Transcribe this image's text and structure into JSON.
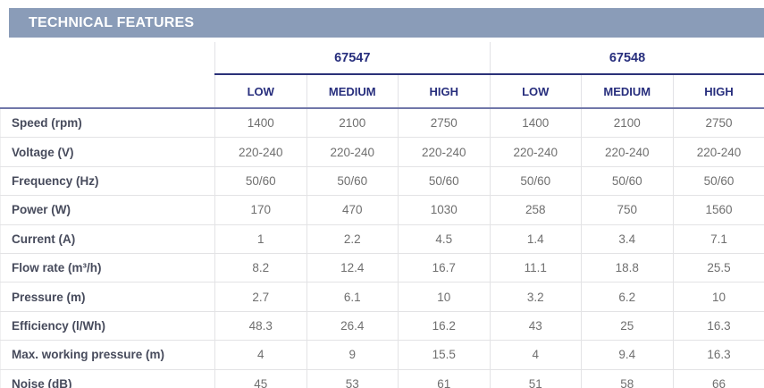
{
  "title": "TECHNICAL FEATURES",
  "colors": {
    "title_bar_bg": "#8a9cb8",
    "title_text": "#ffffff",
    "header_text": "#272e7d",
    "model_underline": "#2b3178",
    "header_underline": "#7077a9",
    "row_label_text": "#474b5c",
    "value_text": "#6f6f6f",
    "grid_line": "#e3e3e5"
  },
  "table": {
    "models": [
      "67547",
      "67548"
    ],
    "level_headers": [
      "LOW",
      "MEDIUM",
      "HIGH",
      "LOW",
      "MEDIUM",
      "HIGH"
    ],
    "rows": [
      {
        "label": "Speed (rpm)",
        "values": [
          "1400",
          "2100",
          "2750",
          "1400",
          "2100",
          "2750"
        ]
      },
      {
        "label": "Voltage (V)",
        "values": [
          "220-240",
          "220-240",
          "220-240",
          "220-240",
          "220-240",
          "220-240"
        ]
      },
      {
        "label": "Frequency (Hz)",
        "values": [
          "50/60",
          "50/60",
          "50/60",
          "50/60",
          "50/60",
          "50/60"
        ]
      },
      {
        "label": "Power (W)",
        "values": [
          "170",
          "470",
          "1030",
          "258",
          "750",
          "1560"
        ]
      },
      {
        "label": "Current (A)",
        "values": [
          "1",
          "2.2",
          "4.5",
          "1.4",
          "3.4",
          "7.1"
        ]
      },
      {
        "label": "Flow rate (m³/h)",
        "values": [
          "8.2",
          "12.4",
          "16.7",
          "11.1",
          "18.8",
          "25.5"
        ]
      },
      {
        "label": "Pressure (m)",
        "values": [
          "2.7",
          "6.1",
          "10",
          "3.2",
          "6.2",
          "10"
        ]
      },
      {
        "label": "Efficiency (l/Wh)",
        "values": [
          "48.3",
          "26.4",
          "16.2",
          "43",
          "25",
          "16.3"
        ]
      },
      {
        "label": "Max. working pressure (m)",
        "values": [
          "4",
          "9",
          "15.5",
          "4",
          "9.4",
          "16.3"
        ]
      },
      {
        "label": "Noise (dB)",
        "values": [
          "45",
          "53",
          "61",
          "51",
          "58",
          "66"
        ]
      }
    ]
  }
}
